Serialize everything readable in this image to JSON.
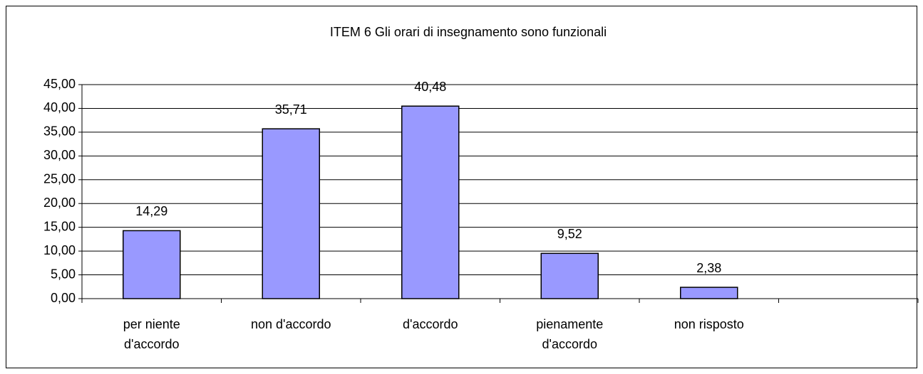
{
  "chart_data": {
    "type": "bar",
    "title": "ITEM 6 Gli orari di insegnamento sono funzionali",
    "categories": [
      "per niente d'accordo",
      "non d'accordo",
      "d'accordo",
      "pienamente d'accordo",
      "non risposto",
      null
    ],
    "values": [
      14.29,
      35.71,
      40.48,
      9.52,
      2.38,
      null
    ],
    "value_labels": [
      "14,29",
      "35,71",
      "40,48",
      "9,52",
      "2,38",
      null
    ],
    "color": "#9999ff",
    "ylim": [
      0,
      45
    ],
    "yticks": [
      {
        "value": 0,
        "label": "0,00"
      },
      {
        "value": 5,
        "label": "5,00"
      },
      {
        "value": 10,
        "label": "10,00"
      },
      {
        "value": 15,
        "label": "15,00"
      },
      {
        "value": 20,
        "label": "20,00"
      },
      {
        "value": 25,
        "label": "25,00"
      },
      {
        "value": 30,
        "label": "30,00"
      },
      {
        "value": 35,
        "label": "35,00"
      },
      {
        "value": 40,
        "label": "40,00"
      },
      {
        "value": 45,
        "label": "45,00"
      }
    ],
    "grid": true
  }
}
